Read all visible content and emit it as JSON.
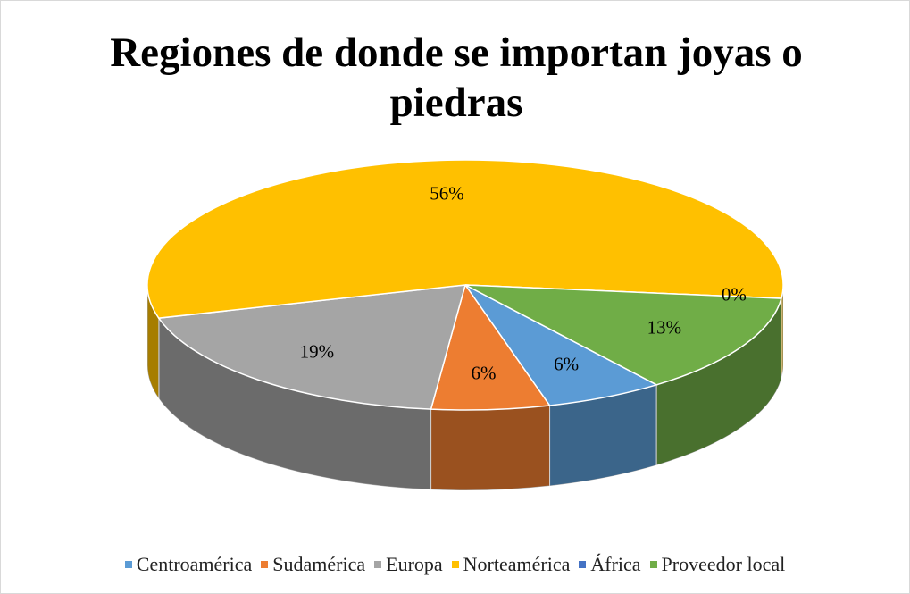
{
  "chart_data": {
    "type": "pie3d",
    "title": "Regiones de donde se importan joyas o piedras",
    "categories": [
      "Centroamérica",
      "Sudamérica",
      "Europa",
      "Norteamérica",
      "África",
      "Proveedor local"
    ],
    "values": [
      6,
      6,
      19,
      56,
      0,
      13
    ],
    "value_labels": [
      "6%",
      "6%",
      "19%",
      "56%",
      "0%",
      "13%"
    ],
    "colors": [
      "#5b9bd5",
      "#ed7d31",
      "#a5a5a5",
      "#ffc000",
      "#4472c4",
      "#70ad47"
    ],
    "legend": "bottom"
  }
}
